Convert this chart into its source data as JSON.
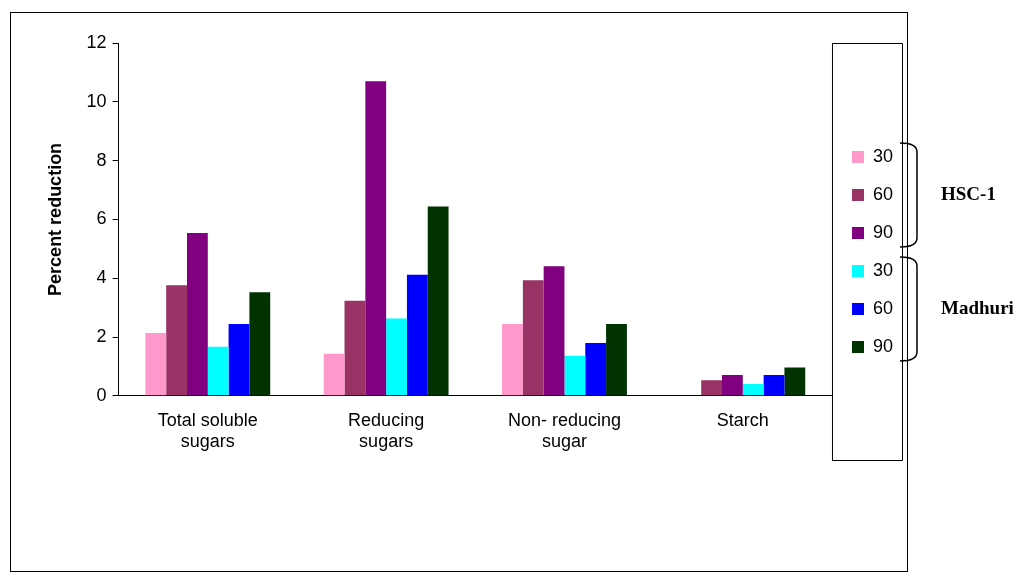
{
  "chart_data": {
    "type": "bar",
    "ylabel": "Percent reduction",
    "categories": [
      "Total soluble sugars",
      "Reducing sugars",
      "Non- reducing sugar",
      "Starch"
    ],
    "series": [
      {
        "name": "30",
        "color": "#ff99cc",
        "values": [
          2.14,
          1.43,
          2.44,
          0
        ]
      },
      {
        "name": "60",
        "color": "#993366",
        "values": [
          3.76,
          3.23,
          3.93,
          0.53
        ]
      },
      {
        "name": "90",
        "color": "#800080",
        "values": [
          5.54,
          10.7,
          4.41,
          0.71
        ]
      },
      {
        "name": "30",
        "color": "#00ffff",
        "values": [
          1.67,
          2.63,
          1.36,
          0.4
        ]
      },
      {
        "name": "60",
        "color": "#0000ff",
        "values": [
          2.44,
          4.12,
          1.8,
          0.71
        ]
      },
      {
        "name": "90",
        "color": "#003300",
        "values": [
          3.52,
          6.44,
          2.44,
          0.96
        ]
      }
    ],
    "ylim": [
      0,
      12
    ],
    "yticks": [
      0,
      2,
      4,
      6,
      8,
      10,
      12
    ],
    "grid": false,
    "legend": "right",
    "annotations": [
      "HSC-1",
      "Madhuri"
    ]
  }
}
